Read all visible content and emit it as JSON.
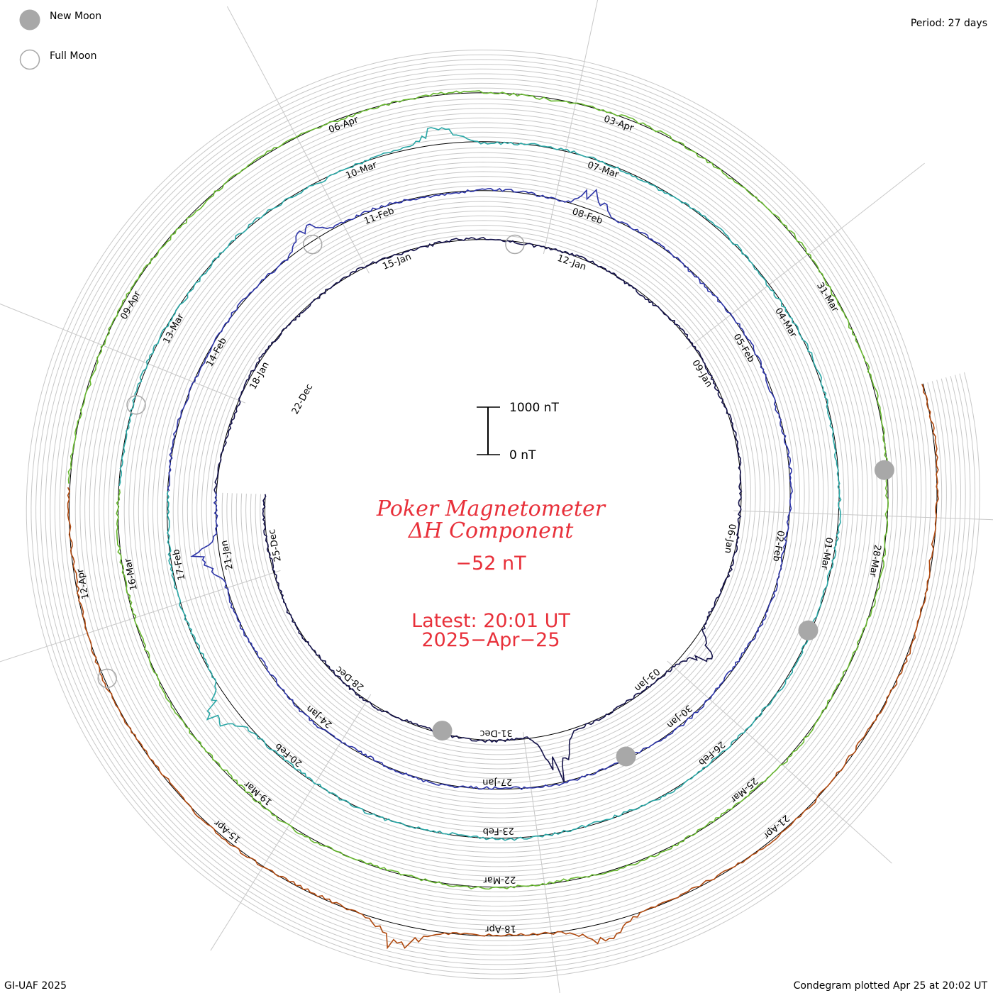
{
  "chart_data": {
    "type": "line",
    "chart_style": "condegram spiral (polar time series)",
    "title": "Poker Magnetometer",
    "subtitle": "ΔH Component",
    "current_value": "−52 nT",
    "latest_label": "Latest: 20:01 UT",
    "latest_date": "2025−Apr−25",
    "period_label": "Period: 27 days",
    "scale_bar": {
      "top_label": "1000 nT",
      "bottom_label": "0 nT",
      "range_nT": [
        0,
        1000
      ]
    },
    "legend": {
      "placement": "top-left",
      "items": [
        {
          "label": "New Moon",
          "symbol": "filled-gray-circle"
        },
        {
          "label": "Full Moon",
          "symbol": "open-gray-circle"
        }
      ]
    },
    "footer_left": "GI-UAF 2025",
    "footer_right": "Condegram plotted Apr 25 at 20:02 UT",
    "revolutions": [
      {
        "start_date": "2024-12-24",
        "color": "#14124a",
        "date_ticks": [
          "22-Dec",
          "25-Dec",
          "28-Dec",
          "31-Dec",
          "03-Jan",
          "06-Jan",
          "09-Jan",
          "12-Jan",
          "15-Jan"
        ]
      },
      {
        "start_date": "2025-01-20",
        "color": "#2d35a8",
        "date_ticks": [
          "18-Jan",
          "21-Jan",
          "24-Jan",
          "27-Jan",
          "30-Jan",
          "02-Feb",
          "05-Feb",
          "08-Feb",
          "11-Feb"
        ]
      },
      {
        "start_date": "2025-02-16",
        "color": "#2aa7a6",
        "date_ticks": [
          "14-Feb",
          "17-Feb",
          "20-Feb",
          "23-Feb",
          "26-Feb",
          "01-Mar",
          "04-Mar",
          "07-Mar",
          "10-Mar"
        ]
      },
      {
        "start_date": "2025-03-15",
        "color": "#68b830",
        "date_ticks": [
          "13-Mar",
          "16-Mar",
          "19-Mar",
          "22-Mar",
          "25-Mar",
          "28-Mar",
          "31-Mar",
          "03-Apr",
          "06-Apr"
        ]
      },
      {
        "start_date": "2025-04-11",
        "color": "#b04a10",
        "date_ticks": [
          "09-Apr",
          "12-Apr",
          "15-Apr",
          "18-Apr",
          "21-Apr"
        ]
      }
    ],
    "moon_phases": [
      {
        "phase": "new",
        "date": "2024-12-30"
      },
      {
        "phase": "full",
        "date": "2025-01-13"
      },
      {
        "phase": "new",
        "date": "2025-01-29"
      },
      {
        "phase": "full",
        "date": "2025-02-12"
      },
      {
        "phase": "new",
        "date": "2025-02-28"
      },
      {
        "phase": "full",
        "date": "2025-03-14"
      },
      {
        "phase": "new",
        "date": "2025-03-29"
      },
      {
        "phase": "full",
        "date": "2025-04-13"
      }
    ],
    "approx_peak_disturbances_nT": [
      {
        "date": "2025-01-01",
        "value": 1050
      },
      {
        "date": "2025-01-04",
        "value": 550
      },
      {
        "date": "2025-01-21",
        "value": 700
      },
      {
        "date": "2025-02-08",
        "value": 500
      },
      {
        "date": "2025-02-12",
        "value": 450
      },
      {
        "date": "2025-02-19",
        "value": 600
      },
      {
        "date": "2025-03-09",
        "value": 550
      },
      {
        "date": "2025-04-17",
        "value": 550
      },
      {
        "date": "2025-04-19",
        "value": 450
      }
    ]
  }
}
